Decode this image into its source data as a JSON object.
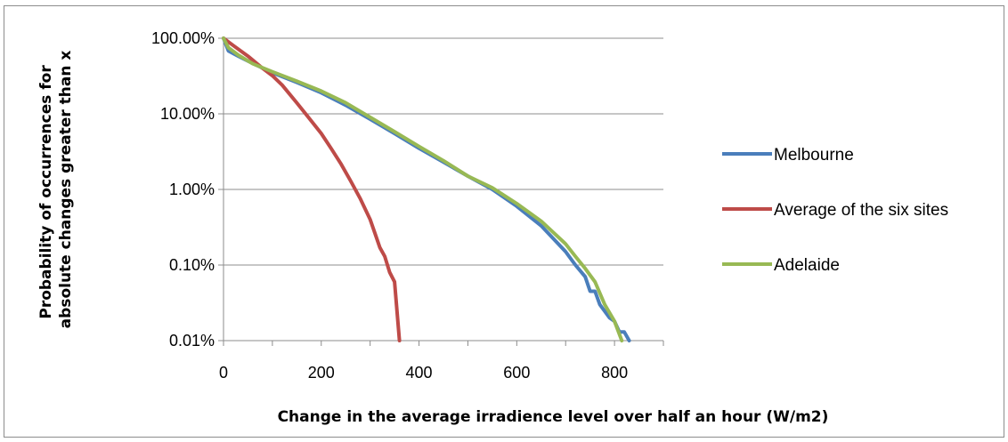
{
  "chart_data": {
    "type": "line",
    "title": "",
    "xlabel": "Change in the average irradience level over half an hour (W/m2)",
    "ylabel": "Probability of occurrences for absolute changes greater than x",
    "ylabel_lines": [
      "Probability of occurrences for",
      "absolute changes greater than x"
    ],
    "xlim": [
      0,
      900
    ],
    "x_ticks": [
      0,
      200,
      400,
      600,
      800
    ],
    "ylim": [
      0.01,
      100
    ],
    "y_scale": "log",
    "y_ticks": [
      100,
      10,
      1,
      0.1,
      0.01
    ],
    "y_tick_labels": [
      "100.00%",
      "10.00%",
      "1.00%",
      "0.10%",
      "0.01%"
    ],
    "grid": "horizontal",
    "legend_position": "right",
    "series": [
      {
        "name": "Melbourne",
        "color": "#4a7ebb",
        "points": [
          [
            0,
            100
          ],
          [
            10,
            68
          ],
          [
            30,
            58
          ],
          [
            50,
            50
          ],
          [
            100,
            35
          ],
          [
            150,
            26
          ],
          [
            200,
            19
          ],
          [
            250,
            13
          ],
          [
            300,
            8.5
          ],
          [
            350,
            5.5
          ],
          [
            400,
            3.5
          ],
          [
            450,
            2.3
          ],
          [
            500,
            1.5
          ],
          [
            550,
            1.0
          ],
          [
            600,
            0.6
          ],
          [
            650,
            0.33
          ],
          [
            700,
            0.15
          ],
          [
            720,
            0.1
          ],
          [
            740,
            0.07
          ],
          [
            750,
            0.045
          ],
          [
            760,
            0.045
          ],
          [
            770,
            0.03
          ],
          [
            790,
            0.02
          ],
          [
            800,
            0.018
          ],
          [
            810,
            0.013
          ],
          [
            820,
            0.013
          ],
          [
            830,
            0.01
          ]
        ]
      },
      {
        "name": "Average of the six sites",
        "color": "#be4b48",
        "points": [
          [
            0,
            100
          ],
          [
            20,
            80
          ],
          [
            50,
            58
          ],
          [
            80,
            40
          ],
          [
            100,
            32
          ],
          [
            120,
            24
          ],
          [
            150,
            14
          ],
          [
            180,
            8
          ],
          [
            200,
            5.5
          ],
          [
            220,
            3.5
          ],
          [
            240,
            2.2
          ],
          [
            260,
            1.3
          ],
          [
            280,
            0.75
          ],
          [
            300,
            0.4
          ],
          [
            310,
            0.26
          ],
          [
            320,
            0.17
          ],
          [
            330,
            0.13
          ],
          [
            340,
            0.08
          ],
          [
            350,
            0.06
          ],
          [
            360,
            0.01
          ]
        ]
      },
      {
        "name": "Adelaide",
        "color": "#98b954",
        "points": [
          [
            0,
            100
          ],
          [
            10,
            75
          ],
          [
            30,
            60
          ],
          [
            60,
            46
          ],
          [
            100,
            36
          ],
          [
            150,
            27
          ],
          [
            200,
            20
          ],
          [
            250,
            14
          ],
          [
            300,
            9
          ],
          [
            350,
            5.8
          ],
          [
            400,
            3.7
          ],
          [
            450,
            2.4
          ],
          [
            500,
            1.5
          ],
          [
            550,
            1.05
          ],
          [
            600,
            0.65
          ],
          [
            650,
            0.38
          ],
          [
            700,
            0.19
          ],
          [
            720,
            0.13
          ],
          [
            740,
            0.09
          ],
          [
            760,
            0.06
          ],
          [
            780,
            0.03
          ],
          [
            800,
            0.018
          ],
          [
            815,
            0.01
          ]
        ]
      }
    ]
  }
}
